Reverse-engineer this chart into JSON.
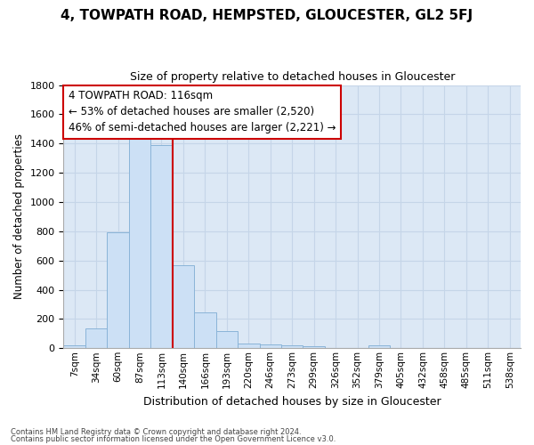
{
  "title": "4, TOWPATH ROAD, HEMPSTED, GLOUCESTER, GL2 5FJ",
  "subtitle": "Size of property relative to detached houses in Gloucester",
  "xlabel": "Distribution of detached houses by size in Gloucester",
  "ylabel": "Number of detached properties",
  "bin_labels": [
    "7sqm",
    "34sqm",
    "60sqm",
    "87sqm",
    "113sqm",
    "140sqm",
    "166sqm",
    "193sqm",
    "220sqm",
    "246sqm",
    "273sqm",
    "299sqm",
    "326sqm",
    "352sqm",
    "379sqm",
    "405sqm",
    "432sqm",
    "458sqm",
    "485sqm",
    "511sqm",
    "538sqm"
  ],
  "bar_values": [
    20,
    135,
    790,
    1490,
    1390,
    565,
    245,
    115,
    35,
    25,
    20,
    15,
    0,
    0,
    20,
    0,
    0,
    0,
    0,
    0,
    0
  ],
  "bar_color": "#cce0f5",
  "bar_edge_color": "#8ab4d8",
  "red_line_x": 4.5,
  "annotation_line1": "4 TOWPATH ROAD: 116sqm",
  "annotation_line2": "← 53% of detached houses are smaller (2,520)",
  "annotation_line3": "46% of semi-detached houses are larger (2,221) →",
  "annotation_box_color": "white",
  "annotation_box_edge_color": "#cc0000",
  "ylim": [
    0,
    1800
  ],
  "yticks": [
    0,
    200,
    400,
    600,
    800,
    1000,
    1200,
    1400,
    1600,
    1800
  ],
  "grid_color": "#c5d5e8",
  "plot_bg_color": "#dce8f5",
  "fig_bg_color": "#ffffff",
  "footer1": "Contains HM Land Registry data © Crown copyright and database right 2024.",
  "footer2": "Contains public sector information licensed under the Open Government Licence v3.0."
}
